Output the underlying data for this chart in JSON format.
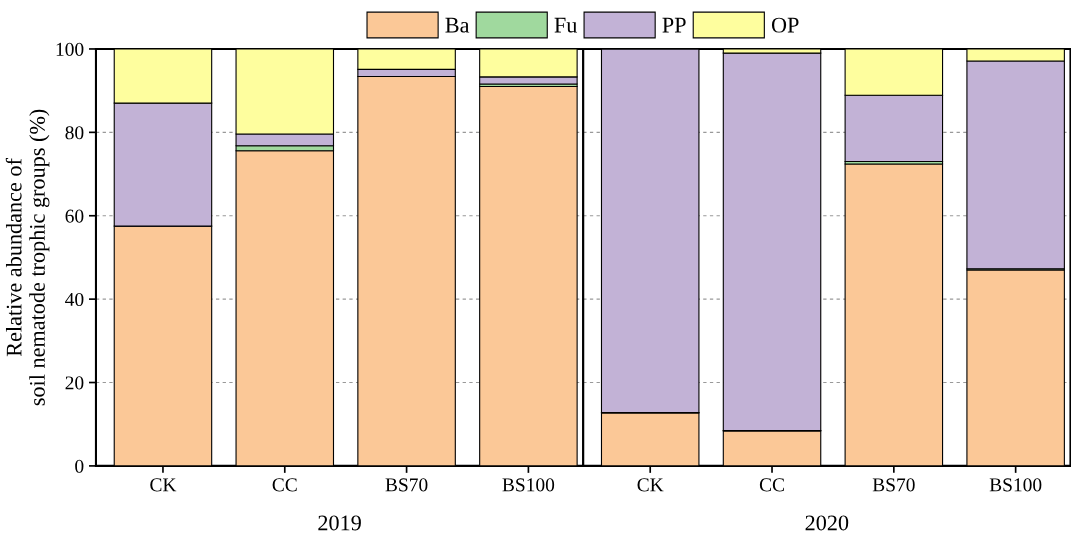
{
  "chart_data": [
    {
      "type": "bar",
      "stacked": true,
      "xlabel": "2019",
      "ylabel": "Relative abundance of\nsoil nematode trophic groups (%)",
      "categories": [
        "CK",
        "CC",
        "BS70",
        "BS100"
      ],
      "ylim": [
        0,
        100
      ],
      "yticks": [
        0,
        20,
        40,
        60,
        80,
        100
      ],
      "grid": "y",
      "legend": "top",
      "series": [
        {
          "name": "Ba",
          "color": "#fbc897",
          "values": [
            57.5,
            75.6,
            93.4,
            91.0
          ]
        },
        {
          "name": "Fu",
          "color": "#a0d99e",
          "values": [
            null,
            1.2,
            null,
            0.6
          ]
        },
        {
          "name": "PP",
          "color": "#c2b2d6",
          "values": [
            29.5,
            2.8,
            1.7,
            1.7
          ]
        },
        {
          "name": "OP",
          "color": "#fefe9e",
          "values": [
            13.0,
            20.4,
            4.9,
            6.7
          ]
        }
      ]
    },
    {
      "type": "bar",
      "stacked": true,
      "xlabel": "2020",
      "categories": [
        "CK",
        "CC",
        "BS70",
        "BS100"
      ],
      "ylim": [
        0,
        100
      ],
      "yticks": [
        0,
        20,
        40,
        60,
        80,
        100
      ],
      "grid": "y",
      "tick_labels": "x",
      "series": [
        {
          "color": "#fbc897",
          "values": [
            12.7,
            8.4,
            72.4,
            47.0
          ]
        },
        {
          "color": "#a0d99e",
          "values": [
            0.1,
            0.1,
            0.6,
            0.3
          ]
        },
        {
          "color": "#c2b2d6",
          "values": [
            87.2,
            90.5,
            15.9,
            49.8
          ]
        },
        {
          "color": "#fefe9e",
          "values": [
            null,
            1.0,
            11.1,
            2.9
          ]
        }
      ]
    }
  ]
}
